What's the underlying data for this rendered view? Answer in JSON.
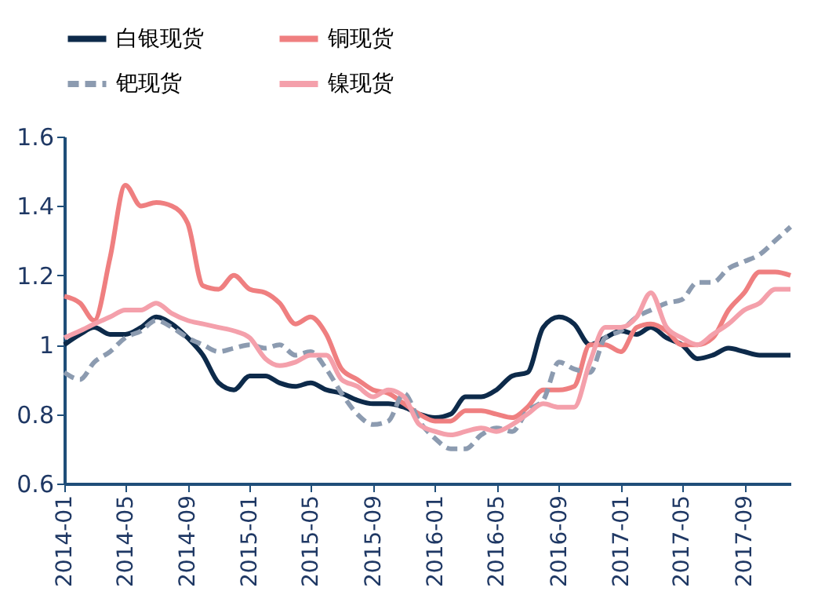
{
  "chart_data": {
    "type": "line",
    "legend": "top",
    "grid": false,
    "marker": "none",
    "x": [
      "2014-01",
      "2014-02",
      "2014-03",
      "2014-04",
      "2014-05",
      "2014-06",
      "2014-07",
      "2014-08",
      "2014-09",
      "2014-10",
      "2014-11",
      "2014-12",
      "2015-01",
      "2015-02",
      "2015-03",
      "2015-04",
      "2015-05",
      "2015-06",
      "2015-07",
      "2015-08",
      "2015-09",
      "2015-10",
      "2015-11",
      "2015-12",
      "2016-01",
      "2016-02",
      "2016-03",
      "2016-04",
      "2016-05",
      "2016-06",
      "2016-07",
      "2016-08",
      "2016-09",
      "2016-10",
      "2016-11",
      "2016-12",
      "2017-01",
      "2017-02",
      "2017-03",
      "2017-04",
      "2017-05",
      "2017-06",
      "2017-07",
      "2017-08",
      "2017-09",
      "2017-10",
      "2017-11",
      "2017-12"
    ],
    "xlim": [
      "2014-01",
      "2017-12"
    ],
    "xticks": [
      {
        "value": "2014-01",
        "label": "2014-01"
      },
      {
        "value": "2014-05",
        "label": "2014-05"
      },
      {
        "value": "2014-09",
        "label": "2014-09"
      },
      {
        "value": "2015-01",
        "label": "2015-01"
      },
      {
        "value": "2015-05",
        "label": "2015-05"
      },
      {
        "value": "2015-09",
        "label": "2015-09"
      },
      {
        "value": "2016-01",
        "label": "2016-01"
      },
      {
        "value": "2016-05",
        "label": "2016-05"
      },
      {
        "value": "2016-09",
        "label": "2016-09"
      },
      {
        "value": "2017-01",
        "label": "2017-01"
      },
      {
        "value": "2017-05",
        "label": "2017-05"
      },
      {
        "value": "2017-09",
        "label": "2017-09"
      }
    ],
    "ylim": [
      0.6,
      1.6
    ],
    "yticks": [
      0.6,
      0.8,
      1,
      1.2,
      1.4,
      1.6
    ],
    "series": [
      {
        "name": "白银现货",
        "color": "#0d2a4a",
        "line_style": "solid",
        "values": [
          1.0,
          1.03,
          1.05,
          1.03,
          1.03,
          1.05,
          1.08,
          1.06,
          1.02,
          0.97,
          0.89,
          0.87,
          0.91,
          0.91,
          0.89,
          0.88,
          0.89,
          0.87,
          0.86,
          0.84,
          0.83,
          0.83,
          0.82,
          0.8,
          0.79,
          0.8,
          0.85,
          0.85,
          0.87,
          0.91,
          0.92,
          1.05,
          1.08,
          1.06,
          1.0,
          1.02,
          1.04,
          1.03,
          1.05,
          1.02,
          1.0,
          0.96,
          0.97,
          0.99,
          0.98,
          0.97,
          0.97,
          0.97
        ]
      },
      {
        "name": "铜现货",
        "color": "#ef7f80",
        "line_style": "solid",
        "values": [
          1.14,
          1.12,
          1.07,
          1.25,
          1.46,
          1.4,
          1.41,
          1.4,
          1.35,
          1.17,
          1.16,
          1.2,
          1.16,
          1.15,
          1.12,
          1.06,
          1.08,
          1.03,
          0.93,
          0.9,
          0.87,
          0.86,
          0.83,
          0.8,
          0.78,
          0.78,
          0.81,
          0.81,
          0.8,
          0.79,
          0.82,
          0.87,
          0.87,
          0.88,
          1.0,
          1.0,
          0.98,
          1.05,
          1.06,
          1.04,
          1.0,
          1.0,
          1.02,
          1.1,
          1.15,
          1.21,
          1.21,
          1.2
        ]
      },
      {
        "name": "钯现货",
        "color": "#8c9bb0",
        "line_style": "dashed",
        "values": [
          0.92,
          0.9,
          0.95,
          0.98,
          1.02,
          1.04,
          1.07,
          1.05,
          1.02,
          1.0,
          0.98,
          0.99,
          1.0,
          0.99,
          1.0,
          0.97,
          0.98,
          0.93,
          0.86,
          0.8,
          0.77,
          0.78,
          0.86,
          0.78,
          0.73,
          0.7,
          0.7,
          0.74,
          0.76,
          0.75,
          0.81,
          0.84,
          0.95,
          0.93,
          0.92,
          1.02,
          1.04,
          1.08,
          1.1,
          1.12,
          1.13,
          1.18,
          1.18,
          1.22,
          1.24,
          1.26,
          1.3,
          1.34
        ]
      },
      {
        "name": "镍现货",
        "color": "#f4a0ab",
        "line_style": "solid",
        "values": [
          1.02,
          1.04,
          1.06,
          1.08,
          1.1,
          1.1,
          1.12,
          1.09,
          1.07,
          1.06,
          1.05,
          1.04,
          1.02,
          0.96,
          0.94,
          0.95,
          0.97,
          0.97,
          0.9,
          0.88,
          0.85,
          0.87,
          0.85,
          0.77,
          0.75,
          0.74,
          0.75,
          0.76,
          0.75,
          0.77,
          0.8,
          0.83,
          0.82,
          0.82,
          0.95,
          1.05,
          1.05,
          1.08,
          1.15,
          1.05,
          1.02,
          1.0,
          1.03,
          1.06,
          1.1,
          1.12,
          1.16,
          1.16
        ]
      }
    ]
  }
}
